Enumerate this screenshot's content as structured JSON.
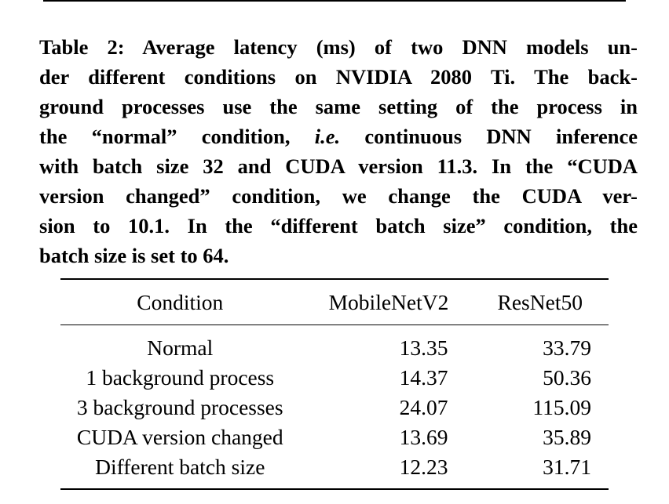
{
  "caption": {
    "line1": "Table 2: Average latency (ms) of two DNN models un-",
    "line2": "der different conditions on NVIDIA 2080 Ti. The back-",
    "line3": "ground processes use the same setting of the process in",
    "line4_a": "the “normal” condition, ",
    "line4_ital": "i.e.",
    "line4_b": " continuous DNN inference",
    "line5": "with batch size 32 and CUDA version 11.3. In the “CUDA",
    "line6": "version changed” condition, we change the CUDA ver-",
    "line7": "sion to 10.1. In the “different batch size” condition, the",
    "line8": "batch size is set to 64."
  },
  "table": {
    "headers": [
      "Condition",
      "MobileNetV2",
      "ResNet50"
    ],
    "rows": [
      {
        "condition": "Normal",
        "mobilenetv2": "13.35",
        "resnet50": "33.79"
      },
      {
        "condition": "1 background process",
        "mobilenetv2": "14.37",
        "resnet50": "50.36"
      },
      {
        "condition": "3 background processes",
        "mobilenetv2": "24.07",
        "resnet50": "115.09"
      },
      {
        "condition": "CUDA version changed",
        "mobilenetv2": "13.69",
        "resnet50": "35.89"
      },
      {
        "condition": "Different batch size",
        "mobilenetv2": "12.23",
        "resnet50": "31.71"
      }
    ]
  }
}
